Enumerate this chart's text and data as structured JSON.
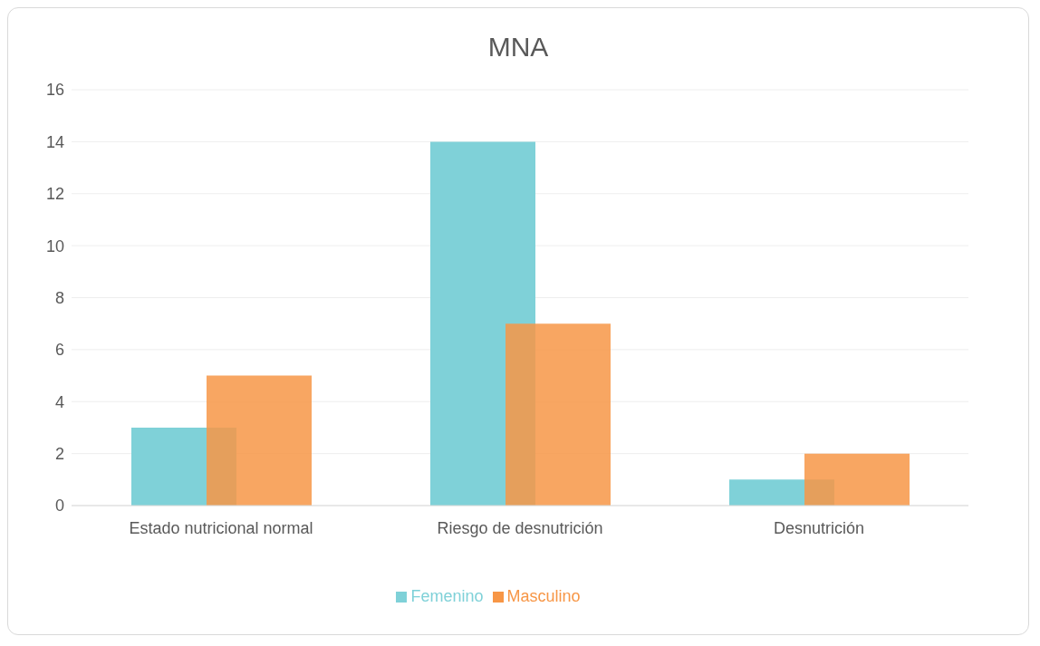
{
  "chart_data": {
    "type": "bar",
    "title": "MNA",
    "categories": [
      "Estado nutricional normal",
      "Riesgo de desnutrición",
      "Desnutrición"
    ],
    "series": [
      {
        "name": "Femenino",
        "color": "#7fd1d8",
        "values": [
          3,
          14,
          1
        ]
      },
      {
        "name": "Masculino",
        "color": "#f79646",
        "values": [
          5,
          7,
          2
        ]
      }
    ],
    "ylim": [
      0,
      16
    ],
    "yticks": [
      0,
      2,
      4,
      6,
      8,
      10,
      12,
      14,
      16
    ],
    "grid": "y",
    "legend": "bottom"
  }
}
